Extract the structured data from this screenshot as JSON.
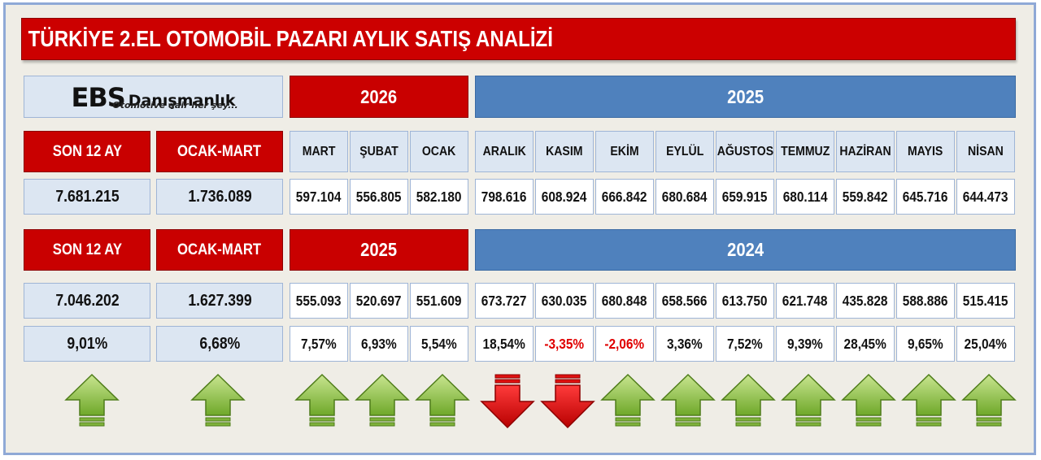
{
  "title": "TÜRKİYE 2.EL OTOMOBİL PAZARI AYLIK SATIŞ ANALİZİ",
  "logo": {
    "mark": "EBS",
    "name": "Danışmanlık",
    "tagline": "Otomotive dair her şey..."
  },
  "years_top": {
    "current": "2026",
    "previous": "2025"
  },
  "years_bottom": {
    "current": "2025",
    "previous": "2024"
  },
  "labels": {
    "son12": "SON 12 AY",
    "period": "OCAK-MART"
  },
  "months": [
    "MART",
    "ŞUBAT",
    "OCAK",
    "ARALIK",
    "KASIM",
    "EKİM",
    "EYLÜL",
    "AĞUSTOS",
    "TEMMUZ",
    "HAZİRAN",
    "MAYIS",
    "NİSAN"
  ],
  "current": {
    "son12": "7.681.215",
    "period": "1.736.089",
    "values": [
      "597.104",
      "556.805",
      "582.180",
      "798.616",
      "608.924",
      "666.842",
      "680.684",
      "659.915",
      "680.114",
      "559.842",
      "645.716",
      "644.473"
    ]
  },
  "previous": {
    "son12": "7.046.202",
    "period": "1.627.399",
    "values": [
      "555.093",
      "520.697",
      "551.609",
      "673.727",
      "630.035",
      "680.848",
      "658.566",
      "613.750",
      "621.748",
      "435.828",
      "588.886",
      "515.415"
    ]
  },
  "change": {
    "son12": "9,01%",
    "period": "6,68%",
    "values": [
      "7,57%",
      "6,93%",
      "5,54%",
      "18,54%",
      "-3,35%",
      "-2,06%",
      "3,36%",
      "7,52%",
      "9,39%",
      "28,45%",
      "9,65%",
      "25,04%"
    ],
    "directions": [
      "up",
      "up",
      "up",
      "up",
      "up",
      "down",
      "down",
      "up",
      "up",
      "up",
      "up",
      "up",
      "up",
      "up"
    ]
  },
  "colors": {
    "up": "#8dc63f",
    "down": "#e00000",
    "header_red": "#c90000",
    "header_blue": "#4f81bd"
  },
  "icons": {
    "up": "arrow-up-icon",
    "down": "arrow-down-icon"
  }
}
